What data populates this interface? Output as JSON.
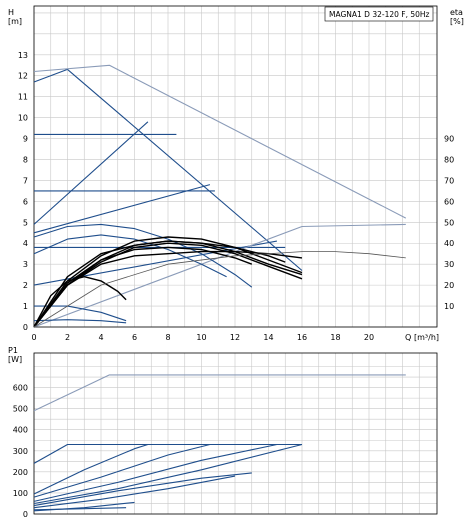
{
  "chart_data": [
    {
      "type": "line",
      "title": "MAGNA1 D 32-120 F, 50Hz",
      "ylabel": "H",
      "yunit": "[m]",
      "y2label": "eta",
      "y2unit": "[%]",
      "xlabel": "Q",
      "xunit": "[m³/h]",
      "xlim": [
        0,
        24
      ],
      "ylim": [
        0,
        14
      ],
      "y2lim": [
        0,
        100
      ],
      "xticks": [
        "0",
        "2",
        "4",
        "6",
        "8",
        "10",
        "12",
        "14",
        "16",
        "18",
        "20"
      ],
      "yticks": [
        "0",
        "1",
        "2",
        "3",
        "4",
        "5",
        "6",
        "7",
        "8",
        "9",
        "10",
        "11",
        "12",
        "13"
      ],
      "y2ticks": [
        "10",
        "20",
        "30",
        "40",
        "50",
        "60",
        "70",
        "80",
        "90"
      ],
      "grid": true,
      "series": [
        {
          "kind": "head",
          "color": "#1f4e8c",
          "x": [
            0,
            2,
            16
          ],
          "y": [
            11.7,
            12.3,
            2.7
          ]
        },
        {
          "kind": "head",
          "color": "#8a9bb8",
          "x": [
            0,
            4.5,
            22.2
          ],
          "y": [
            12.2,
            12.5,
            5.2
          ]
        },
        {
          "kind": "head",
          "color": "#1f4e8c",
          "x": [
            0,
            6.8
          ],
          "y": [
            4.9,
            9.8
          ]
        },
        {
          "kind": "head",
          "color": "#1f4e8c",
          "x": [
            0,
            7.3,
            8.5
          ],
          "y": [
            9.2,
            9.2,
            9.2
          ]
        },
        {
          "kind": "head",
          "color": "#1f4e8c",
          "x": [
            0,
            10.5
          ],
          "y": [
            4.5,
            6.8
          ]
        },
        {
          "kind": "head",
          "color": "#1f4e8c",
          "x": [
            0,
            10.3,
            10.8
          ],
          "y": [
            6.5,
            6.5,
            6.5
          ]
        },
        {
          "kind": "head",
          "color": "#1f4e8c",
          "x": [
            0,
            15
          ],
          "y": [
            3.8,
            3.8
          ]
        },
        {
          "kind": "head",
          "color": "#1f4e8c",
          "x": [
            0,
            14.5
          ],
          "y": [
            2.0,
            4.1
          ]
        },
        {
          "kind": "head",
          "color": "#8a9bb8",
          "x": [
            0,
            16,
            22.2
          ],
          "y": [
            0,
            4.8,
            4.9
          ]
        },
        {
          "kind": "head",
          "color": "#1f4e8c",
          "x": [
            0,
            2,
            4,
            6,
            8,
            10,
            12,
            13
          ],
          "y": [
            4.3,
            4.8,
            4.9,
            4.7,
            4.2,
            3.5,
            2.5,
            1.9
          ]
        },
        {
          "kind": "head",
          "color": "#1f4e8c",
          "x": [
            0,
            2,
            4,
            6,
            8,
            10,
            11.5
          ],
          "y": [
            3.5,
            4.2,
            4.4,
            4.2,
            3.7,
            3.0,
            2.4
          ]
        },
        {
          "kind": "head",
          "color": "#1f4e8c",
          "x": [
            0,
            2,
            4,
            5.5
          ],
          "y": [
            1.0,
            1.0,
            0.7,
            0.3
          ]
        },
        {
          "kind": "head",
          "color": "#1f4e8c",
          "x": [
            0,
            2,
            4,
            5.5
          ],
          "y": [
            0.3,
            0.35,
            0.3,
            0.2
          ]
        },
        {
          "kind": "eta",
          "color": "#000000",
          "x": [
            0,
            2,
            4,
            6,
            8,
            10,
            12,
            14,
            16
          ],
          "y": [
            0,
            20,
            32,
            39,
            41,
            40,
            36,
            30,
            25
          ]
        },
        {
          "kind": "eta",
          "color": "#000000",
          "x": [
            0,
            2,
            4,
            6,
            8,
            10,
            12,
            14,
            16
          ],
          "y": [
            0,
            22,
            34,
            41,
            43,
            42,
            38,
            32,
            26
          ]
        },
        {
          "kind": "eta",
          "color": "#000000",
          "x": [
            0,
            2,
            4,
            6,
            8,
            10,
            12,
            14,
            16
          ],
          "y": [
            0,
            20,
            31,
            38,
            40,
            39,
            35,
            29,
            23
          ]
        },
        {
          "kind": "eta",
          "color": "#000000",
          "x": [
            0,
            2,
            4,
            6,
            8,
            10,
            12,
            13
          ],
          "y": [
            0,
            21,
            32,
            37,
            38,
            37,
            33,
            30
          ]
        },
        {
          "kind": "eta",
          "color": "#000000",
          "x": [
            0,
            2,
            4,
            6,
            8,
            10,
            12,
            14,
            15
          ],
          "y": [
            0,
            24,
            35,
            39,
            41,
            40,
            38,
            34,
            31
          ]
        },
        {
          "kind": "eta",
          "color": "#000000",
          "x": [
            0,
            2,
            4,
            6,
            8,
            10,
            12,
            14,
            16
          ],
          "y": [
            0,
            20,
            30,
            34,
            35,
            36,
            36,
            35,
            33
          ]
        },
        {
          "kind": "eta",
          "color": "#000000",
          "x": [
            0,
            1,
            2,
            3,
            4,
            5,
            5.5
          ],
          "y": [
            0,
            15,
            22,
            24,
            22,
            17,
            13
          ]
        },
        {
          "kind": "eta",
          "color": "#555555",
          "x": [
            0,
            4,
            8,
            12,
            16,
            18,
            20,
            22.2
          ],
          "y": [
            0,
            20,
            30,
            34,
            36,
            36,
            35,
            33
          ]
        }
      ]
    },
    {
      "type": "line",
      "ylabel": "P1",
      "yunit": "[W]",
      "xlim": [
        0,
        24
      ],
      "ylim": [
        0,
        720
      ],
      "yticks": [
        "0",
        "100",
        "200",
        "300",
        "400",
        "500",
        "600"
      ],
      "grid": true,
      "series": [
        {
          "color": "#8a9bb8",
          "x": [
            0,
            4.5,
            22.2
          ],
          "y": [
            490,
            660,
            660
          ]
        },
        {
          "color": "#1f4e8c",
          "x": [
            0,
            2,
            16
          ],
          "y": [
            240,
            330,
            330
          ]
        },
        {
          "color": "#1f4e8c",
          "x": [
            0,
            3,
            6,
            6.8
          ],
          "y": [
            95,
            210,
            310,
            330
          ]
        },
        {
          "color": "#1f4e8c",
          "x": [
            0,
            4,
            8,
            10.5
          ],
          "y": [
            80,
            175,
            280,
            330
          ]
        },
        {
          "color": "#1f4e8c",
          "x": [
            0,
            5,
            10,
            14.5
          ],
          "y": [
            60,
            150,
            255,
            330
          ]
        },
        {
          "color": "#1f4e8c",
          "x": [
            0,
            5,
            10,
            16
          ],
          "y": [
            50,
            120,
            210,
            330
          ]
        },
        {
          "color": "#1f4e8c",
          "x": [
            0,
            5,
            10,
            13
          ],
          "y": [
            40,
            110,
            170,
            195
          ]
        },
        {
          "color": "#1f4e8c",
          "x": [
            0,
            4,
            8,
            12
          ],
          "y": [
            30,
            70,
            120,
            180
          ]
        },
        {
          "color": "#1f4e8c",
          "x": [
            0,
            3,
            5.5
          ],
          "y": [
            20,
            25,
            30
          ]
        },
        {
          "color": "#1f4e8c",
          "x": [
            0,
            3,
            6
          ],
          "y": [
            15,
            30,
            55
          ]
        }
      ]
    }
  ]
}
